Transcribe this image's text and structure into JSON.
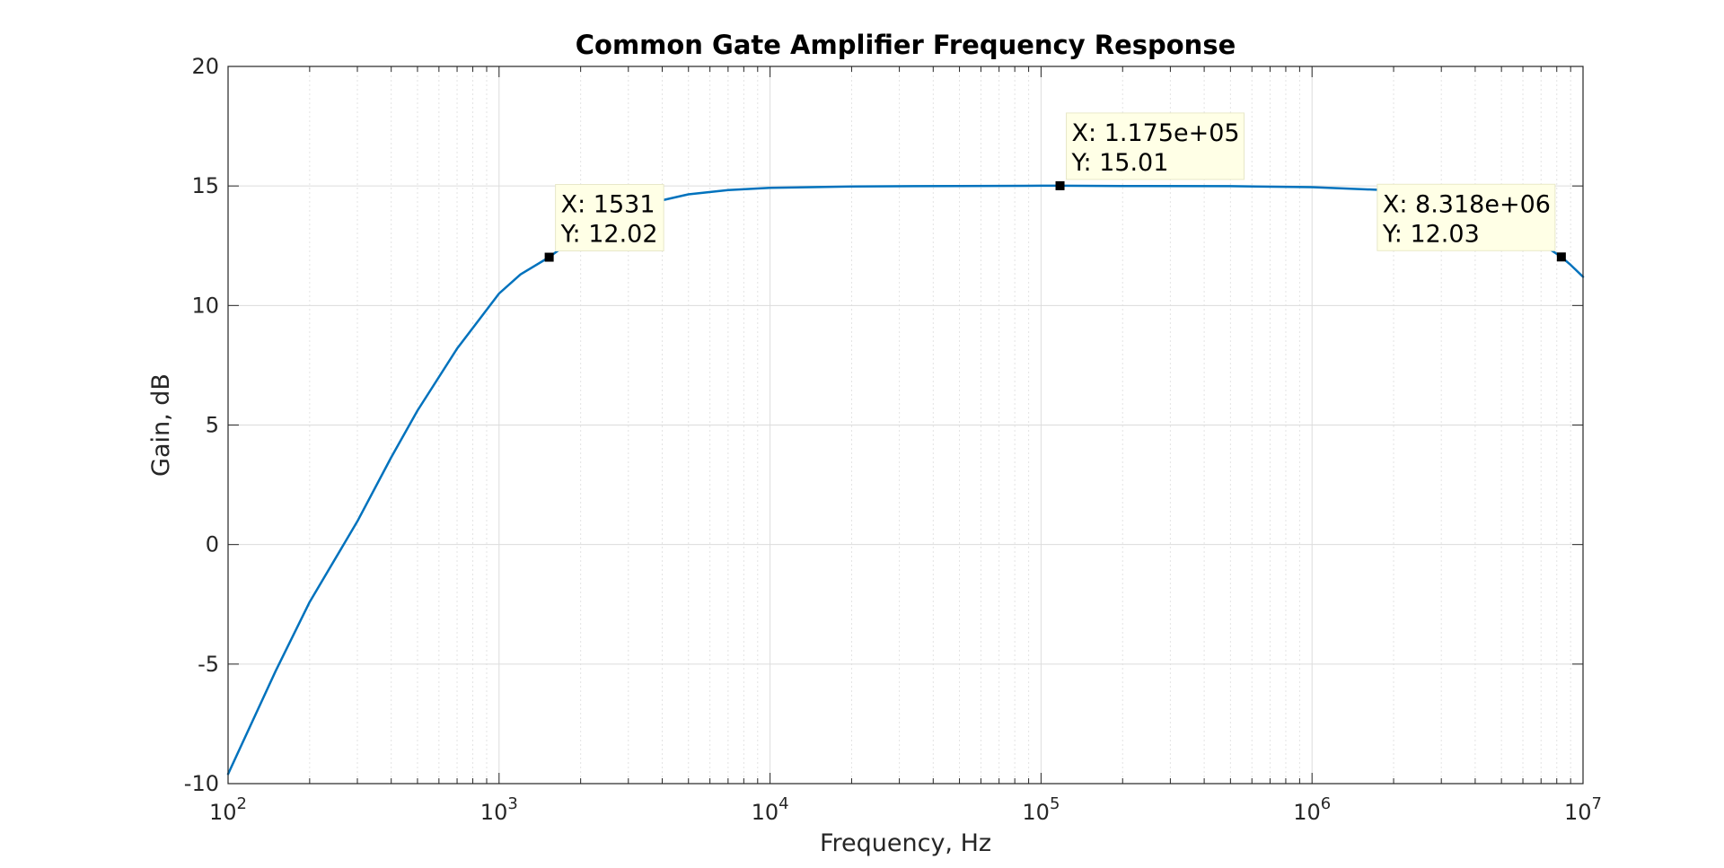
{
  "chart_data": {
    "type": "line",
    "title": "Common Gate Amplifier Frequency Response",
    "xlabel": "Frequency, Hz",
    "ylabel": "Gain, dB",
    "xscale": "log",
    "xlim": [
      100,
      10000000
    ],
    "ylim": [
      -10,
      20
    ],
    "grid": true,
    "minor_grid": true,
    "x_ticks": [
      {
        "value": 100,
        "base": "10",
        "exp": "2"
      },
      {
        "value": 1000,
        "base": "10",
        "exp": "3"
      },
      {
        "value": 10000,
        "base": "10",
        "exp": "4"
      },
      {
        "value": 100000,
        "base": "10",
        "exp": "5"
      },
      {
        "value": 1000000,
        "base": "10",
        "exp": "6"
      },
      {
        "value": 10000000,
        "base": "10",
        "exp": "7"
      }
    ],
    "y_ticks": [
      {
        "value": -10,
        "label": "-10"
      },
      {
        "value": -5,
        "label": "-5"
      },
      {
        "value": 0,
        "label": "0"
      },
      {
        "value": 5,
        "label": "5"
      },
      {
        "value": 10,
        "label": "10"
      },
      {
        "value": 15,
        "label": "15"
      },
      {
        "value": 20,
        "label": "20"
      }
    ],
    "series": [
      {
        "color": "#0072bd",
        "x": [
          100,
          150,
          200,
          300,
          400,
          500,
          700,
          1000,
          1200,
          1531,
          2000,
          3000,
          4000,
          5000,
          7000,
          10000,
          20000,
          50000,
          100000,
          117500,
          200000,
          500000,
          1000000,
          2000000,
          3000000,
          4000000,
          5000000,
          6000000,
          7000000,
          8318000,
          9000000,
          10000000
        ],
        "y": [
          -9.6,
          -5.28,
          -2.4,
          0.97,
          3.65,
          5.6,
          8.2,
          10.5,
          11.3,
          12.02,
          13.0,
          14.0,
          14.4,
          14.65,
          14.83,
          14.92,
          14.98,
          15.0,
          15.01,
          15.01,
          15.0,
          14.99,
          14.95,
          14.81,
          14.55,
          14.0,
          13.5,
          13.0,
          12.6,
          12.03,
          11.7,
          11.2
        ]
      }
    ],
    "annotations": [
      {
        "x": 1531,
        "y": 12.02,
        "line1": "X: 1531",
        "line2": "Y: 12.02",
        "anchor": "right"
      },
      {
        "x": 117500,
        "y": 15.01,
        "line1": "X: 1.175e+05",
        "line2": "Y: 15.01",
        "anchor": "right"
      },
      {
        "x": 8318000,
        "y": 12.03,
        "line1": "X: 8.318e+06",
        "line2": "Y: 12.03",
        "anchor": "left"
      }
    ]
  }
}
